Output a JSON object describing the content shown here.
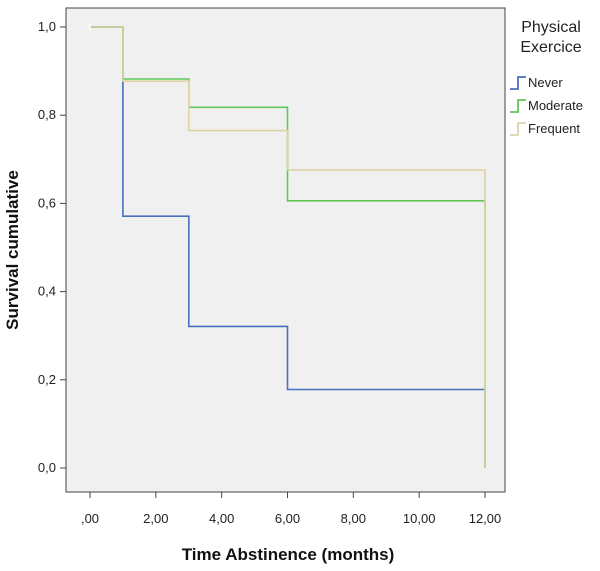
{
  "chart_data": {
    "type": "line",
    "step": true,
    "xlabel": "Time Abstinence (months)",
    "ylabel": "Survival cumulative",
    "xlim": [
      0,
      12
    ],
    "ylim": [
      0,
      1
    ],
    "x_tick_labels": [
      ",00",
      "2,00",
      "4,00",
      "6,00",
      "8,00",
      "10,00",
      "12,00"
    ],
    "y_tick_labels": [
      "0,0",
      "0,2",
      "0,4",
      "0,6",
      "0,8",
      "1,0"
    ],
    "grid": false,
    "legend_title": "Physical Exercice",
    "legend_position": "top-right",
    "series": [
      {
        "name": "Never",
        "color": "#4a6fbf",
        "points": [
          [
            0,
            1.0
          ],
          [
            1,
            1.0
          ],
          [
            1,
            0.571
          ],
          [
            3,
            0.571
          ],
          [
            3,
            0.321
          ],
          [
            6,
            0.321
          ],
          [
            6,
            0.178
          ],
          [
            12,
            0.178
          ],
          [
            12,
            0.0
          ]
        ]
      },
      {
        "name": "Moderate",
        "color": "#5fc75a",
        "points": [
          [
            0,
            1.0
          ],
          [
            1,
            1.0
          ],
          [
            1,
            0.882
          ],
          [
            3,
            0.882
          ],
          [
            3,
            0.818
          ],
          [
            6,
            0.818
          ],
          [
            6,
            0.606
          ],
          [
            12,
            0.606
          ],
          [
            12,
            0.0
          ]
        ]
      },
      {
        "name": "Frequent",
        "color": "#ddd4a4",
        "points": [
          [
            0,
            1.0
          ],
          [
            1,
            1.0
          ],
          [
            1,
            0.877
          ],
          [
            3,
            0.877
          ],
          [
            3,
            0.765
          ],
          [
            6,
            0.765
          ],
          [
            6,
            0.676
          ],
          [
            12,
            0.676
          ],
          [
            12,
            0.0
          ]
        ]
      }
    ]
  }
}
